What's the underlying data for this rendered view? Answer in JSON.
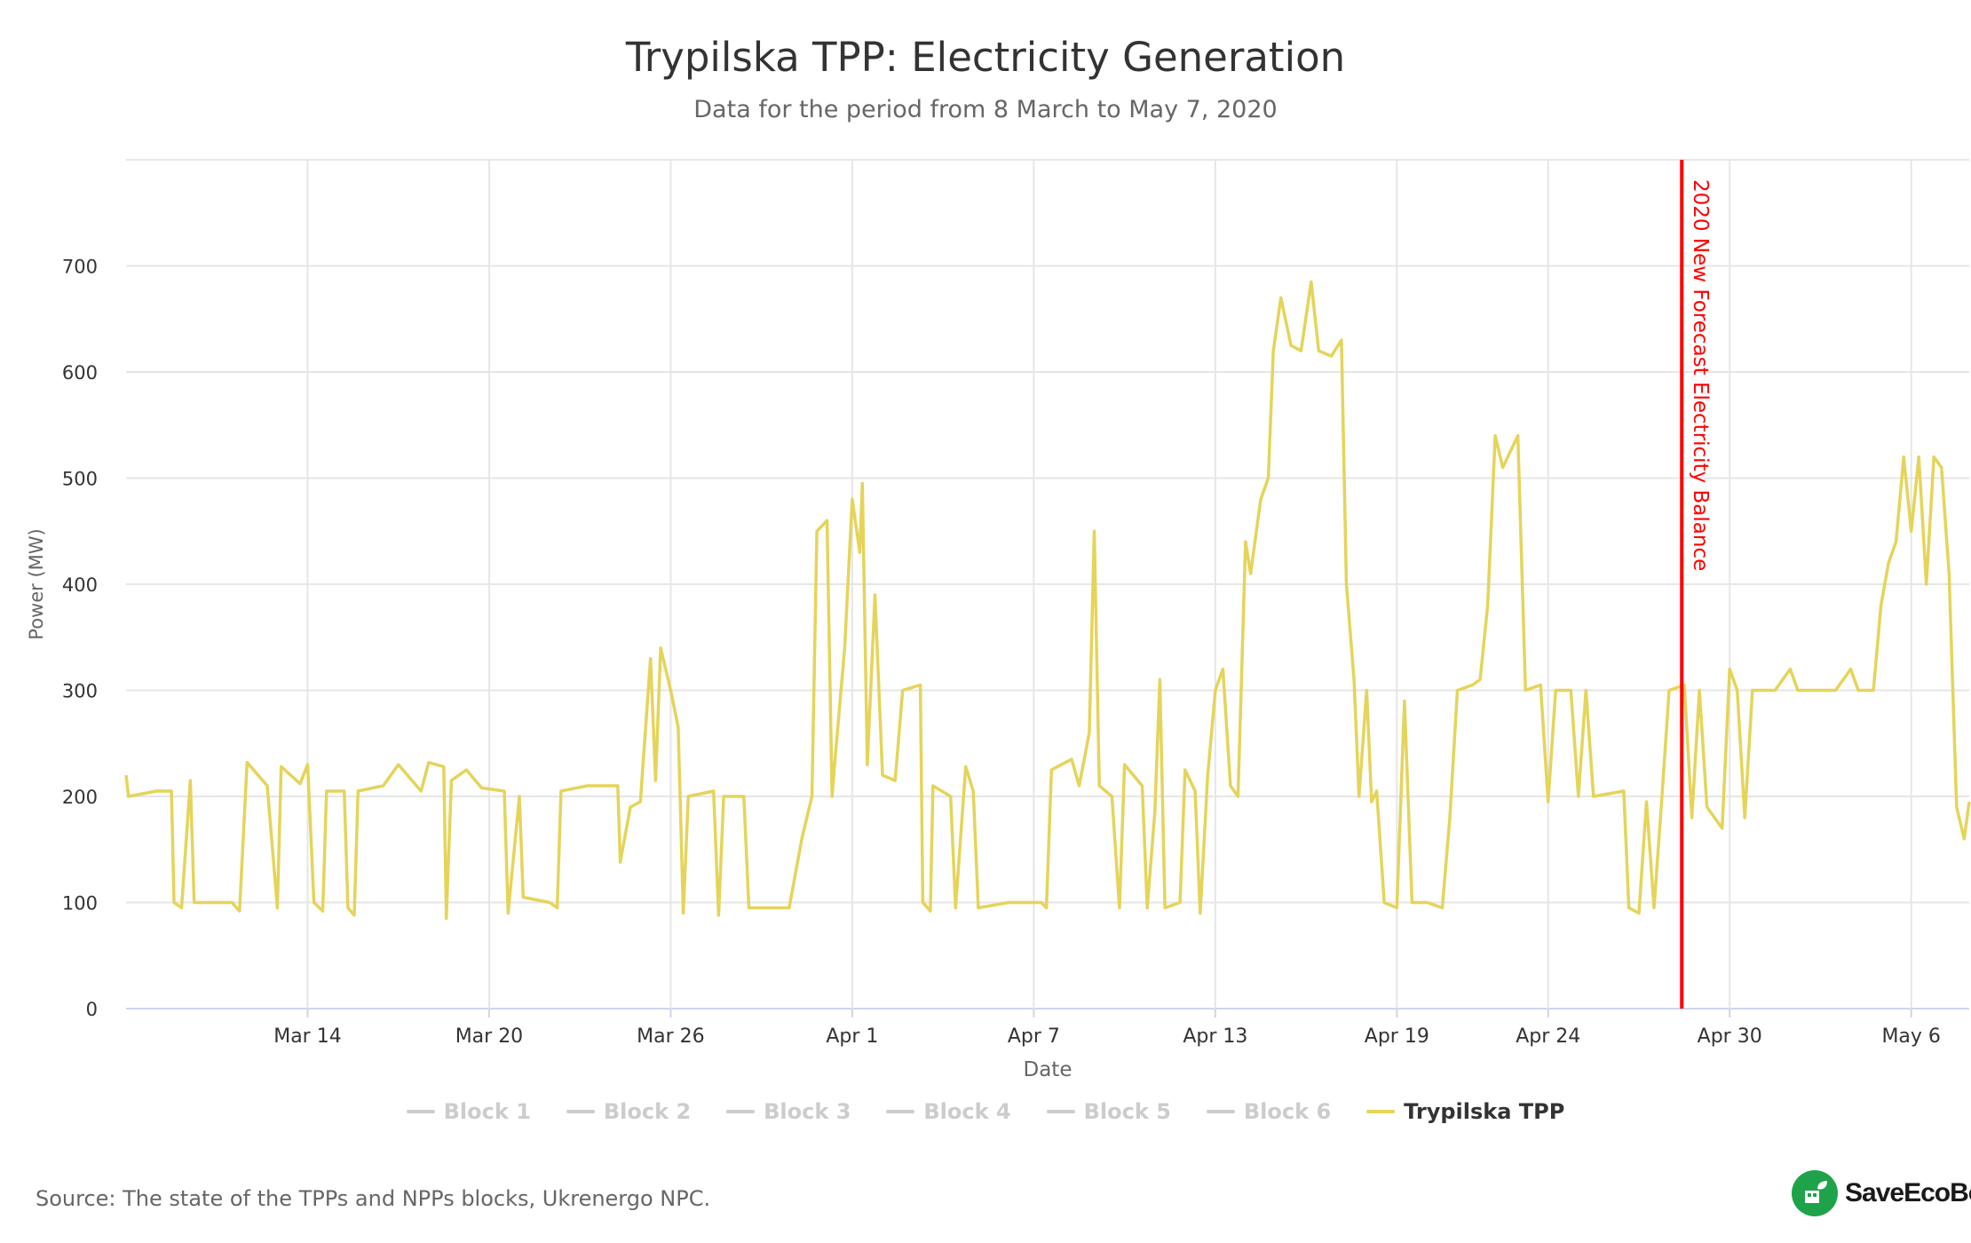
{
  "chart_data": {
    "type": "line",
    "title": "Trypilska TPP: Electricity Generation",
    "subtitle": "Data for the period from 8 March to May 7, 2020",
    "xlabel": "Date",
    "ylabel": "Power (MW)",
    "x_range": [
      "2020-03-08",
      "2020-05-07T22:00"
    ],
    "ylim": [
      0,
      800
    ],
    "y_ticks": [
      0,
      100,
      200,
      300,
      400,
      500,
      600,
      700
    ],
    "x_ticks": [
      {
        "date": "2020-03-14",
        "label": "Mar 14"
      },
      {
        "date": "2020-03-20",
        "label": "Mar 20"
      },
      {
        "date": "2020-03-26",
        "label": "Mar 26"
      },
      {
        "date": "2020-04-01",
        "label": "Apr 1"
      },
      {
        "date": "2020-04-07",
        "label": "Apr 7"
      },
      {
        "date": "2020-04-13",
        "label": "Apr 13"
      },
      {
        "date": "2020-04-19",
        "label": "Apr 19"
      },
      {
        "date": "2020-04-24",
        "label": "Apr 24"
      },
      {
        "date": "2020-04-30",
        "label": "Apr 30"
      },
      {
        "date": "2020-05-06",
        "label": "May 6"
      }
    ],
    "grid": true,
    "legend": "bottom",
    "plot_band_line": {
      "date": "2020-04-28T10:00",
      "label": "2020 New Forecast Electricity Balance",
      "color": "#ff0000"
    },
    "series": [
      {
        "name": "Block 1",
        "color": "#cccccc",
        "visible": false,
        "points": []
      },
      {
        "name": "Block 2",
        "color": "#cccccc",
        "visible": false,
        "points": []
      },
      {
        "name": "Block 3",
        "color": "#cccccc",
        "visible": false,
        "points": []
      },
      {
        "name": "Block 4",
        "color": "#cccccc",
        "visible": false,
        "points": []
      },
      {
        "name": "Block 5",
        "color": "#cccccc",
        "visible": false,
        "points": []
      },
      {
        "name": "Block 6",
        "color": "#cccccc",
        "visible": false,
        "points": []
      },
      {
        "name": "Trypilska TPP",
        "color": "#e5d45a",
        "visible": true,
        "points": [
          [
            "2020-03-08T00:00",
            220
          ],
          [
            "2020-03-08T02:00",
            200
          ],
          [
            "2020-03-09T00:00",
            205
          ],
          [
            "2020-03-09T12:00",
            205
          ],
          [
            "2020-03-09T14:00",
            100
          ],
          [
            "2020-03-09T20:00",
            95
          ],
          [
            "2020-03-10T03:00",
            215
          ],
          [
            "2020-03-10T06:00",
            100
          ],
          [
            "2020-03-11T12:00",
            100
          ],
          [
            "2020-03-11T18:00",
            92
          ],
          [
            "2020-03-12T00:00",
            232
          ],
          [
            "2020-03-12T16:00",
            210
          ],
          [
            "2020-03-13T00:00",
            95
          ],
          [
            "2020-03-13T03:00",
            228
          ],
          [
            "2020-03-13T18:00",
            212
          ],
          [
            "2020-03-14T00:00",
            230
          ],
          [
            "2020-03-14T05:00",
            100
          ],
          [
            "2020-03-14T12:00",
            92
          ],
          [
            "2020-03-14T15:00",
            205
          ],
          [
            "2020-03-15T05:00",
            205
          ],
          [
            "2020-03-15T08:00",
            95
          ],
          [
            "2020-03-15T13:00",
            88
          ],
          [
            "2020-03-15T16:00",
            205
          ],
          [
            "2020-03-16T12:00",
            210
          ],
          [
            "2020-03-17T00:00",
            230
          ],
          [
            "2020-03-17T18:00",
            205
          ],
          [
            "2020-03-18T00:00",
            232
          ],
          [
            "2020-03-18T12:00",
            228
          ],
          [
            "2020-03-18T14:00",
            85
          ],
          [
            "2020-03-18T18:00",
            215
          ],
          [
            "2020-03-19T06:00",
            225
          ],
          [
            "2020-03-19T18:00",
            208
          ],
          [
            "2020-03-20T12:00",
            205
          ],
          [
            "2020-03-20T15:00",
            90
          ],
          [
            "2020-03-21T00:00",
            200
          ],
          [
            "2020-03-21T03:00",
            105
          ],
          [
            "2020-03-22T00:00",
            100
          ],
          [
            "2020-03-22T06:00",
            95
          ],
          [
            "2020-03-22T09:00",
            205
          ],
          [
            "2020-03-23T06:00",
            210
          ],
          [
            "2020-03-24T06:00",
            210
          ],
          [
            "2020-03-24T08:00",
            138
          ],
          [
            "2020-03-24T16:00",
            190
          ],
          [
            "2020-03-25T00:00",
            195
          ],
          [
            "2020-03-25T08:00",
            330
          ],
          [
            "2020-03-25T12:00",
            215
          ],
          [
            "2020-03-25T16:00",
            340
          ],
          [
            "2020-03-26T00:00",
            300
          ],
          [
            "2020-03-26T06:00",
            265
          ],
          [
            "2020-03-26T10:00",
            90
          ],
          [
            "2020-03-26T14:00",
            200
          ],
          [
            "2020-03-27T10:00",
            205
          ],
          [
            "2020-03-27T14:00",
            88
          ],
          [
            "2020-03-27T18:00",
            200
          ],
          [
            "2020-03-28T10:00",
            200
          ],
          [
            "2020-03-28T14:00",
            95
          ],
          [
            "2020-03-29T22:00",
            95
          ],
          [
            "2020-03-30T08:00",
            160
          ],
          [
            "2020-03-30T16:00",
            200
          ],
          [
            "2020-03-30T20:00",
            450
          ],
          [
            "2020-03-31T04:00",
            460
          ],
          [
            "2020-03-31T08:00",
            200
          ],
          [
            "2020-03-31T10:00",
            230
          ],
          [
            "2020-03-31T18:00",
            340
          ],
          [
            "2020-04-01T00:00",
            480
          ],
          [
            "2020-04-01T06:00",
            430
          ],
          [
            "2020-04-01T08:00",
            495
          ],
          [
            "2020-04-01T12:00",
            230
          ],
          [
            "2020-04-01T18:00",
            390
          ],
          [
            "2020-04-02T00:00",
            220
          ],
          [
            "2020-04-02T10:00",
            215
          ],
          [
            "2020-04-02T16:00",
            300
          ],
          [
            "2020-04-03T06:00",
            305
          ],
          [
            "2020-04-03T08:00",
            100
          ],
          [
            "2020-04-03T14:00",
            92
          ],
          [
            "2020-04-03T16:00",
            210
          ],
          [
            "2020-04-04T06:00",
            200
          ],
          [
            "2020-04-04T10:00",
            95
          ],
          [
            "2020-04-04T18:00",
            228
          ],
          [
            "2020-04-05T00:00",
            205
          ],
          [
            "2020-04-05T04:00",
            95
          ],
          [
            "2020-04-06T04:00",
            100
          ],
          [
            "2020-04-07T06:00",
            100
          ],
          [
            "2020-04-07T10:00",
            95
          ],
          [
            "2020-04-07T14:00",
            225
          ],
          [
            "2020-04-08T06:00",
            235
          ],
          [
            "2020-04-08T12:00",
            210
          ],
          [
            "2020-04-08T20:00",
            260
          ],
          [
            "2020-04-09T00:00",
            450
          ],
          [
            "2020-04-09T04:00",
            210
          ],
          [
            "2020-04-09T14:00",
            200
          ],
          [
            "2020-04-09T20:00",
            95
          ],
          [
            "2020-04-10T00:00",
            230
          ],
          [
            "2020-04-10T14:00",
            210
          ],
          [
            "2020-04-10T18:00",
            95
          ],
          [
            "2020-04-11T00:00",
            185
          ],
          [
            "2020-04-11T04:00",
            310
          ],
          [
            "2020-04-11T08:00",
            95
          ],
          [
            "2020-04-11T20:00",
            100
          ],
          [
            "2020-04-12T00:00",
            225
          ],
          [
            "2020-04-12T08:00",
            205
          ],
          [
            "2020-04-12T12:00",
            90
          ],
          [
            "2020-04-12T18:00",
            220
          ],
          [
            "2020-04-13T00:00",
            300
          ],
          [
            "2020-04-13T06:00",
            320
          ],
          [
            "2020-04-13T12:00",
            210
          ],
          [
            "2020-04-13T18:00",
            200
          ],
          [
            "2020-04-14T00:00",
            440
          ],
          [
            "2020-04-14T04:00",
            410
          ],
          [
            "2020-04-14T12:00",
            480
          ],
          [
            "2020-04-14T18:00",
            500
          ],
          [
            "2020-04-14T22:00",
            620
          ],
          [
            "2020-04-15T04:00",
            670
          ],
          [
            "2020-04-15T12:00",
            625
          ],
          [
            "2020-04-15T20:00",
            620
          ],
          [
            "2020-04-16T04:00",
            685
          ],
          [
            "2020-04-16T10:00",
            620
          ],
          [
            "2020-04-16T20:00",
            615
          ],
          [
            "2020-04-17T04:00",
            630
          ],
          [
            "2020-04-17T08:00",
            400
          ],
          [
            "2020-04-17T14:00",
            310
          ],
          [
            "2020-04-17T18:00",
            200
          ],
          [
            "2020-04-18T00:00",
            300
          ],
          [
            "2020-04-18T04:00",
            195
          ],
          [
            "2020-04-18T08:00",
            205
          ],
          [
            "2020-04-18T14:00",
            100
          ],
          [
            "2020-04-19T00:00",
            95
          ],
          [
            "2020-04-19T06:00",
            290
          ],
          [
            "2020-04-19T12:00",
            100
          ],
          [
            "2020-04-20T00:00",
            100
          ],
          [
            "2020-04-20T12:00",
            95
          ],
          [
            "2020-04-20T18:00",
            180
          ],
          [
            "2020-04-21T00:00",
            300
          ],
          [
            "2020-04-21T12:00",
            305
          ],
          [
            "2020-04-21T18:00",
            310
          ],
          [
            "2020-04-22T00:00",
            380
          ],
          [
            "2020-04-22T06:00",
            540
          ],
          [
            "2020-04-22T12:00",
            510
          ],
          [
            "2020-04-23T00:00",
            540
          ],
          [
            "2020-04-23T06:00",
            300
          ],
          [
            "2020-04-23T18:00",
            305
          ],
          [
            "2020-04-24T00:00",
            195
          ],
          [
            "2020-04-24T06:00",
            300
          ],
          [
            "2020-04-24T18:00",
            300
          ],
          [
            "2020-04-25T00:00",
            200
          ],
          [
            "2020-04-25T06:00",
            300
          ],
          [
            "2020-04-25T12:00",
            200
          ],
          [
            "2020-04-26T12:00",
            205
          ],
          [
            "2020-04-26T16:00",
            95
          ],
          [
            "2020-04-27T00:00",
            90
          ],
          [
            "2020-04-27T06:00",
            195
          ],
          [
            "2020-04-27T12:00",
            95
          ],
          [
            "2020-04-27T18:00",
            195
          ],
          [
            "2020-04-28T00:00",
            300
          ],
          [
            "2020-04-28T12:00",
            305
          ],
          [
            "2020-04-28T18:00",
            180
          ],
          [
            "2020-04-29T00:00",
            300
          ],
          [
            "2020-04-29T06:00",
            190
          ],
          [
            "2020-04-29T18:00",
            170
          ],
          [
            "2020-04-30T00:00",
            320
          ],
          [
            "2020-04-30T06:00",
            300
          ],
          [
            "2020-04-30T12:00",
            180
          ],
          [
            "2020-04-30T18:00",
            300
          ],
          [
            "2020-05-01T12:00",
            300
          ],
          [
            "2020-05-02T00:00",
            320
          ],
          [
            "2020-05-02T06:00",
            300
          ],
          [
            "2020-05-03T12:00",
            300
          ],
          [
            "2020-05-04T00:00",
            320
          ],
          [
            "2020-05-04T06:00",
            300
          ],
          [
            "2020-05-04T18:00",
            300
          ],
          [
            "2020-05-05T00:00",
            380
          ],
          [
            "2020-05-05T06:00",
            420
          ],
          [
            "2020-05-05T12:00",
            440
          ],
          [
            "2020-05-05T18:00",
            520
          ],
          [
            "2020-05-06T00:00",
            450
          ],
          [
            "2020-05-06T06:00",
            520
          ],
          [
            "2020-05-06T12:00",
            400
          ],
          [
            "2020-05-06T18:00",
            520
          ],
          [
            "2020-05-07T00:00",
            510
          ],
          [
            "2020-05-07T06:00",
            410
          ],
          [
            "2020-05-07T12:00",
            190
          ],
          [
            "2020-05-07T18:00",
            160
          ],
          [
            "2020-05-07T22:00",
            195
          ]
        ]
      }
    ]
  },
  "footer": {
    "source": "Source: The state of the TPPs and NPPs blocks, Ukrenergo NPC.",
    "brand": "SaveEcoBot"
  },
  "colors": {
    "brand": "#1fa34a",
    "inactive_legend": "#cccccc"
  }
}
